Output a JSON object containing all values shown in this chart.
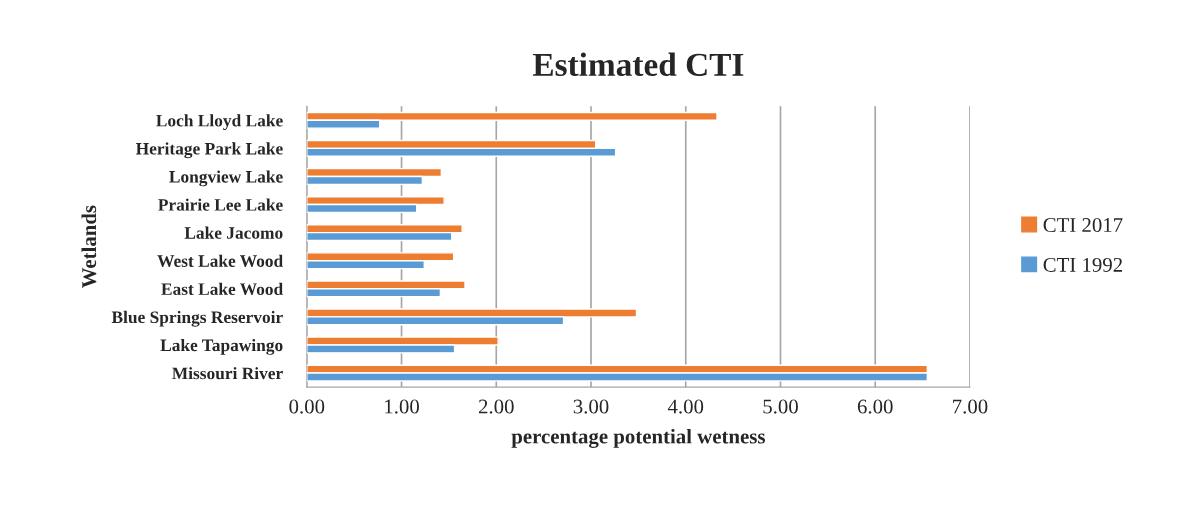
{
  "chart_data": {
    "type": "bar",
    "orientation": "horizontal",
    "title": "Estimated CTI",
    "xlabel": "percentage potential wetness",
    "ylabel": "Wetlands",
    "categories": [
      "Loch Lloyd Lake",
      "Heritage Park Lake",
      "Longview Lake",
      "Prairie Lee Lake",
      "Lake Jacomo",
      "West Lake Wood",
      "East Lake Wood",
      "Blue Springs Reservoir",
      "Lake Tapawingo",
      "Missouri River"
    ],
    "series": [
      {
        "name": "CTI 2017",
        "color": "#ed7d31",
        "values": [
          4.33,
          3.05,
          1.42,
          1.45,
          1.64,
          1.55,
          1.67,
          3.48,
          2.02,
          6.55
        ]
      },
      {
        "name": "CTI 1992",
        "color": "#5b9bd5",
        "values": [
          0.77,
          3.26,
          1.22,
          1.16,
          1.53,
          1.24,
          1.41,
          2.71,
          1.56,
          6.55
        ]
      }
    ],
    "xlim": [
      0,
      7
    ],
    "xticks": [
      {
        "value": 0,
        "label": "0.00"
      },
      {
        "value": 1,
        "label": "1.00"
      },
      {
        "value": 2,
        "label": "2.00"
      },
      {
        "value": 3,
        "label": "3.00"
      },
      {
        "value": 4,
        "label": "4.00"
      },
      {
        "value": 5,
        "label": "5.00"
      },
      {
        "value": 6,
        "label": "6.00"
      },
      {
        "value": 7,
        "label": "7.00"
      }
    ],
    "grid": "x",
    "legend": "right"
  }
}
